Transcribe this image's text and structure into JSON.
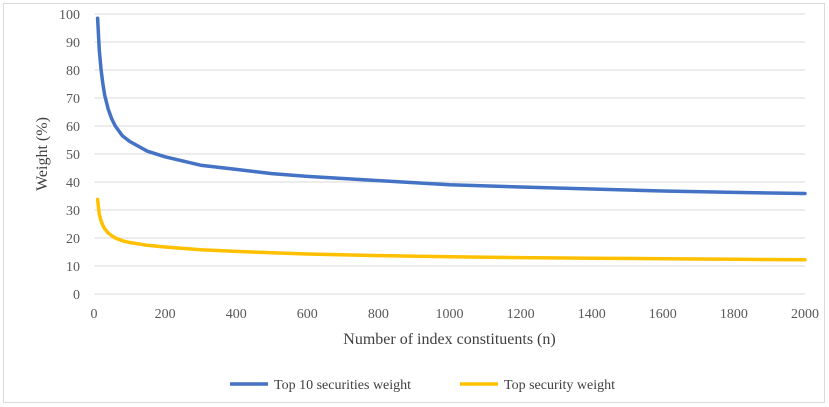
{
  "chart_data": {
    "type": "line",
    "xlabel": "Number of index constituents (n)",
    "ylabel": "Weight (%)",
    "xlim": [
      0,
      2000
    ],
    "ylim": [
      0,
      100
    ],
    "x_ticks": [
      0,
      200,
      400,
      600,
      800,
      1000,
      1200,
      1400,
      1600,
      1800,
      2000
    ],
    "y_ticks": [
      0,
      10,
      20,
      30,
      40,
      50,
      60,
      70,
      80,
      90,
      100
    ],
    "grid": "horizontal",
    "legend_position": "bottom",
    "series": [
      {
        "name": "Top 10 securities weight",
        "color": "#4472C4",
        "x": [
          10,
          15,
          20,
          25,
          30,
          40,
          50,
          60,
          80,
          100,
          150,
          200,
          300,
          400,
          500,
          600,
          800,
          1000,
          1200,
          1400,
          1600,
          1800,
          2000
        ],
        "values": [
          98.5,
          87,
          80,
          75,
          71,
          66,
          62.5,
          60,
          56.5,
          54.5,
          51,
          49,
          46,
          44.5,
          43,
          42,
          40.5,
          39,
          38.2,
          37.5,
          36.8,
          36.3,
          35.9
        ]
      },
      {
        "name": "Top security weight",
        "color": "#FFC000",
        "x": [
          10,
          15,
          20,
          25,
          30,
          40,
          50,
          60,
          80,
          100,
          150,
          200,
          300,
          400,
          500,
          600,
          800,
          1000,
          1200,
          1400,
          1600,
          1800,
          2000
        ],
        "values": [
          33.8,
          28.5,
          26,
          24.5,
          23.3,
          21.8,
          20.8,
          20,
          19,
          18.4,
          17.4,
          16.8,
          15.8,
          15.2,
          14.7,
          14.3,
          13.7,
          13.3,
          13,
          12.8,
          12.6,
          12.4,
          12.2
        ]
      }
    ]
  }
}
